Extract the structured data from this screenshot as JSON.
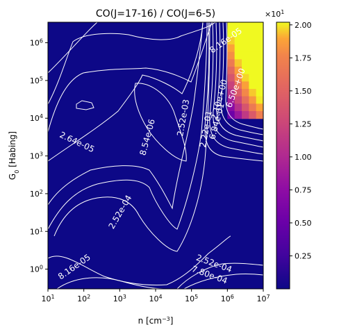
{
  "chart_data": {
    "type": "heatmap",
    "title": "CO(J=17-16) / CO(J=6-5)",
    "xlabel": "n [cm",
    "xlabel_sup": "−3",
    "xlabel_end": "]",
    "ylabel_main": "G",
    "ylabel_sub": "0",
    "ylabel_end": " [Habing]",
    "x_scale": "log",
    "y_scale": "log",
    "xlim": [
      10,
      10000000
    ],
    "ylim": [
      0.3,
      3500000
    ],
    "x_ticks": [
      {
        "value": 10,
        "base": "10",
        "exp": "1"
      },
      {
        "value": 100,
        "base": "10",
        "exp": "2"
      },
      {
        "value": 1000,
        "base": "10",
        "exp": "3"
      },
      {
        "value": 10000,
        "base": "10",
        "exp": "4"
      },
      {
        "value": 100000,
        "base": "10",
        "exp": "5"
      },
      {
        "value": 1000000,
        "base": "10",
        "exp": "6"
      },
      {
        "value": 10000000,
        "base": "10",
        "exp": "7"
      }
    ],
    "y_ticks": [
      {
        "value": 1,
        "base": "10",
        "exp": "0"
      },
      {
        "value": 10,
        "base": "10",
        "exp": "1"
      },
      {
        "value": 100,
        "base": "10",
        "exp": "2"
      },
      {
        "value": 1000,
        "base": "10",
        "exp": "3"
      },
      {
        "value": 10000,
        "base": "10",
        "exp": "4"
      },
      {
        "value": 100000,
        "base": "10",
        "exp": "5"
      },
      {
        "value": 1000000,
        "base": "10",
        "exp": "6"
      }
    ],
    "colormap": "plasma",
    "colorbar": {
      "min": 0.0,
      "max": 2.02,
      "ticks": [
        {
          "value": 0.25,
          "label": "0.25"
        },
        {
          "value": 0.5,
          "label": "0.50"
        },
        {
          "value": 0.75,
          "label": "0.75"
        },
        {
          "value": 1.0,
          "label": "1.00"
        },
        {
          "value": 1.25,
          "label": "1.25"
        },
        {
          "value": 1.5,
          "label": "1.50"
        },
        {
          "value": 1.75,
          "label": "1.75"
        },
        {
          "value": 2.0,
          "label": "2.00"
        }
      ],
      "multiplier_base": "×10",
      "multiplier_exp": "1"
    },
    "contour_color": "#ffffff",
    "contour_labels": [
      {
        "text": "8.16e-05",
        "x": 1000000,
        "y": 1000000,
        "angle": 35
      },
      {
        "text": "6.50e+00",
        "x": 2000000,
        "y": 60000,
        "angle": 70
      },
      {
        "text": "2.10e+00",
        "x": 700000,
        "y": 30000,
        "angle": 75
      },
      {
        "text": "6.84e-01",
        "x": 600000,
        "y": 8000,
        "angle": 75
      },
      {
        "text": "2.22e-01",
        "x": 300000,
        "y": 5000,
        "angle": 80
      },
      {
        "text": "2.52e-03",
        "x": 70000,
        "y": 10000,
        "angle": 80
      },
      {
        "text": "8.54e-06",
        "x": 7000,
        "y": 3000,
        "angle": 75
      },
      {
        "text": "2.64e-05",
        "x": 60,
        "y": 2000,
        "angle": -25
      },
      {
        "text": "2.52e-04",
        "x": 1200,
        "y": 30,
        "angle": 60
      },
      {
        "text": "8.16e-05",
        "x": 60,
        "y": 1,
        "angle": 35
      },
      {
        "text": "2.52e-04",
        "x": 400000,
        "y": 1.2,
        "angle": -20
      },
      {
        "text": "7.80e-04",
        "x": 300000,
        "y": 0.6,
        "angle": -20
      }
    ]
  }
}
